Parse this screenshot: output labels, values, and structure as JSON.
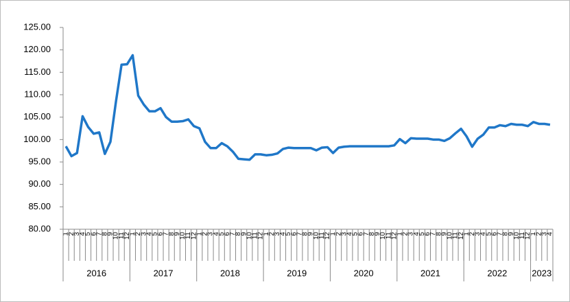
{
  "chart_data": {
    "type": "line",
    "categories": [
      "1",
      "2",
      "3",
      "4",
      "5",
      "6",
      "7",
      "8",
      "9",
      "10",
      "11",
      "12",
      "1",
      "2",
      "3",
      "4",
      "5",
      "6",
      "7",
      "8",
      "9",
      "10",
      "11",
      "12",
      "1",
      "2",
      "3",
      "4",
      "5",
      "6",
      "7",
      "8",
      "9",
      "10",
      "11",
      "12",
      "1",
      "2",
      "3",
      "4",
      "5",
      "6",
      "7",
      "8",
      "9",
      "10",
      "11",
      "12",
      "1",
      "2",
      "3",
      "4",
      "5",
      "6",
      "7",
      "8",
      "9",
      "10",
      "11",
      "12",
      "1",
      "2",
      "3",
      "4",
      "5",
      "6",
      "7",
      "8",
      "9",
      "10",
      "11",
      "12",
      "1",
      "2",
      "3",
      "4",
      "5",
      "6",
      "7",
      "8",
      "9",
      "10",
      "11",
      "12",
      "1",
      "2",
      "3",
      "4"
    ],
    "groups": [
      "2016",
      "2017",
      "2018",
      "2019",
      "2020",
      "2021",
      "2022",
      "2023"
    ],
    "series": [
      {
        "color": "#1f77c8",
        "values": [
          98.5,
          96.3,
          97.0,
          105.2,
          102.8,
          101.3,
          101.6,
          96.8,
          99.5,
          108.5,
          116.7,
          116.8,
          118.8,
          109.8,
          107.8,
          106.3,
          106.3,
          107.0,
          105.0,
          104.0,
          104.0,
          104.1,
          104.5,
          103.0,
          102.5,
          99.5,
          98.1,
          98.1,
          99.2,
          98.5,
          97.3,
          95.7,
          95.6,
          95.5,
          96.7,
          96.7,
          96.5,
          96.6,
          96.9,
          97.9,
          98.2,
          98.1,
          98.1,
          98.1,
          98.1,
          97.6,
          98.2,
          98.3,
          97.0,
          98.2,
          98.4,
          98.5,
          98.5,
          98.5,
          98.5,
          98.5,
          98.5,
          98.5,
          98.5,
          98.7,
          100.1,
          99.2,
          100.3,
          100.2,
          100.2,
          100.2,
          100.0,
          100.0,
          99.7,
          100.3,
          101.4,
          102.4,
          100.7,
          98.4,
          100.2,
          101.1,
          102.7,
          102.7,
          103.2,
          103.0,
          103.5,
          103.3,
          103.3,
          103.0,
          103.9,
          103.5,
          103.5,
          103.3
        ]
      }
    ],
    "ylim": [
      80,
      125
    ],
    "yticks": [
      {
        "value": 80,
        "label": "80.00"
      },
      {
        "value": 85,
        "label": "85.00"
      },
      {
        "value": 90,
        "label": "90.00"
      },
      {
        "value": 95,
        "label": "95.00"
      },
      {
        "value": 100,
        "label": "100.00"
      },
      {
        "value": 105,
        "label": "105.00"
      },
      {
        "value": 110,
        "label": "110.00"
      },
      {
        "value": 115,
        "label": "115.00"
      },
      {
        "value": 120,
        "label": "120.00"
      },
      {
        "value": 125,
        "label": "125.00"
      }
    ]
  }
}
